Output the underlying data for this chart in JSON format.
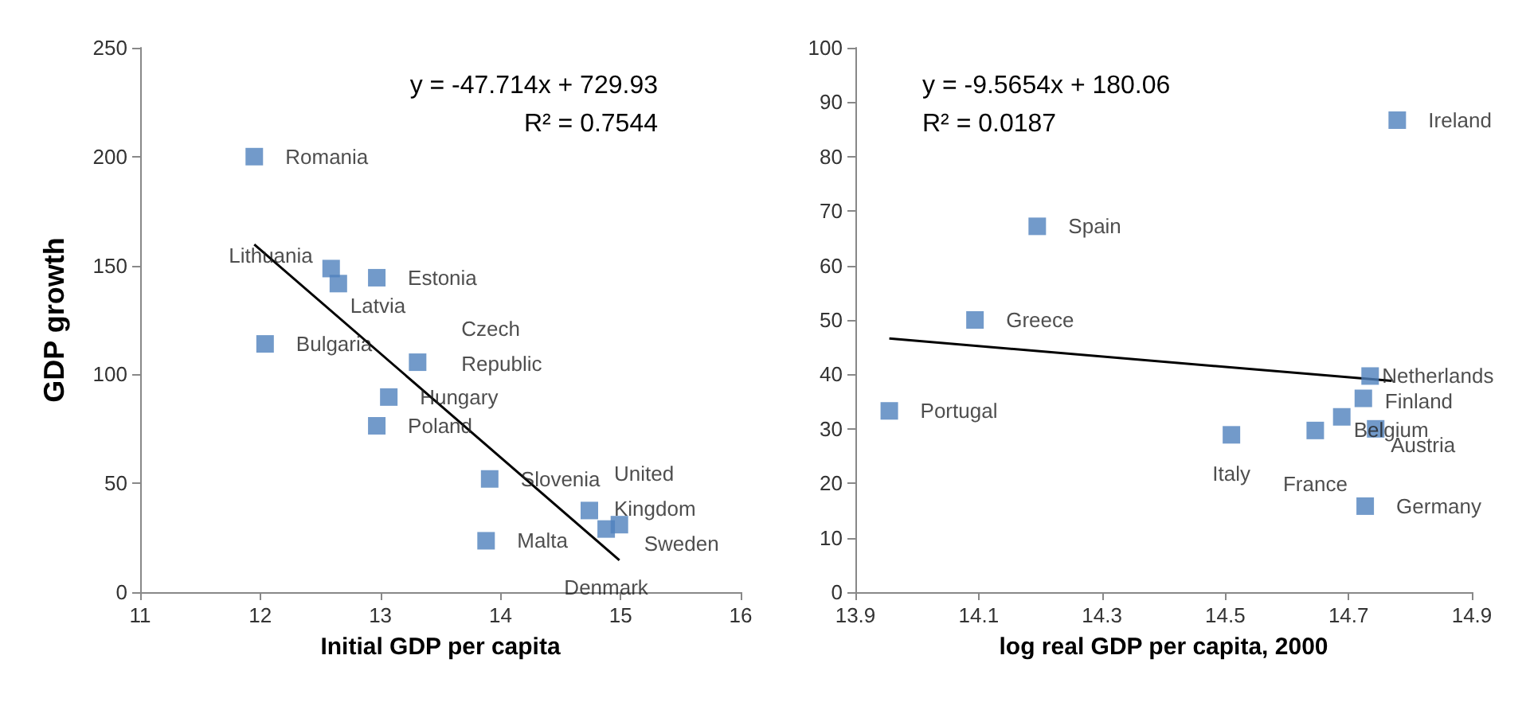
{
  "chart_data": [
    {
      "type": "scatter",
      "xlabel": "Initial GDP per capita",
      "ylabel": "GDP growth",
      "xlim": [
        11,
        16
      ],
      "xticks": [
        11,
        12,
        13,
        14,
        15,
        16
      ],
      "ylim": [
        0,
        250
      ],
      "yticks": [
        0,
        50,
        100,
        150,
        200,
        250
      ],
      "grid": false,
      "marker": "square",
      "annotations": [
        "y = -47.714x + 729.93",
        "R² = 0.7544"
      ],
      "series": [
        {
          "color": "#4f81bd",
          "x": [
            11.95,
            12.59,
            12.65,
            12.97,
            12.04,
            13.31,
            13.07,
            12.97,
            13.91,
            14.74,
            14.88,
            14.99,
            13.88
          ],
          "values": [
            200,
            148.6,
            141.7,
            144.4,
            114,
            105.6,
            89.6,
            76.4,
            52,
            37.5,
            29,
            31,
            23.6
          ],
          "value_labels": [
            "Romania",
            "Lithuania",
            "Latvia",
            "Estonia",
            "Bulgaria",
            "Czech\nRepublic",
            "Hungary",
            "Poland",
            "Slovenia",
            "United\nKingdom",
            "Denmark",
            "Sweden",
            "Malta"
          ]
        },
        {
          "type": "line",
          "color": "#000000",
          "marker": "none",
          "x": [
            11.95,
            14.99
          ],
          "values": [
            159.7,
            14.7
          ]
        }
      ]
    },
    {
      "type": "scatter",
      "xlabel": "log real GDP per capita, 2000",
      "xlim": [
        13.9,
        14.9
      ],
      "xticks": [
        {
          "value": 13.9,
          "label": "13.9"
        },
        {
          "value": 14.1,
          "label": "14.1"
        },
        {
          "value": 14.3,
          "label": "14.3"
        },
        {
          "value": 14.5,
          "label": "14.5"
        },
        {
          "value": 14.7,
          "label": "14.7"
        },
        {
          "value": 14.9,
          "label": "14.9"
        }
      ],
      "ylim": [
        0,
        100
      ],
      "yticks": [
        0,
        10,
        20,
        30,
        40,
        50,
        60,
        70,
        80,
        90,
        100
      ],
      "grid": false,
      "marker": "square",
      "annotations": [
        "y = -9.5654x + 180.06",
        "R² = 0.0187"
      ],
      "series": [
        {
          "color": "#4f81bd",
          "x": [
            14.779,
            14.195,
            14.094,
            13.955,
            14.735,
            14.724,
            14.689,
            14.646,
            14.744,
            14.51,
            14.727
          ],
          "values": [
            86.7,
            67.2,
            50,
            33.3,
            39.7,
            35.6,
            32.2,
            29.7,
            30,
            28.9,
            15.8
          ],
          "value_labels": [
            "Ireland",
            "Spain",
            "Greece",
            "Portugal",
            "Netherlands",
            "Finland",
            "Belgium",
            "France",
            "Austria",
            "Italy",
            "Germany"
          ]
        },
        {
          "type": "line",
          "color": "#000000",
          "marker": "none",
          "x": [
            13.955,
            14.77
          ],
          "values": [
            46.6,
            38.8
          ]
        }
      ]
    }
  ]
}
